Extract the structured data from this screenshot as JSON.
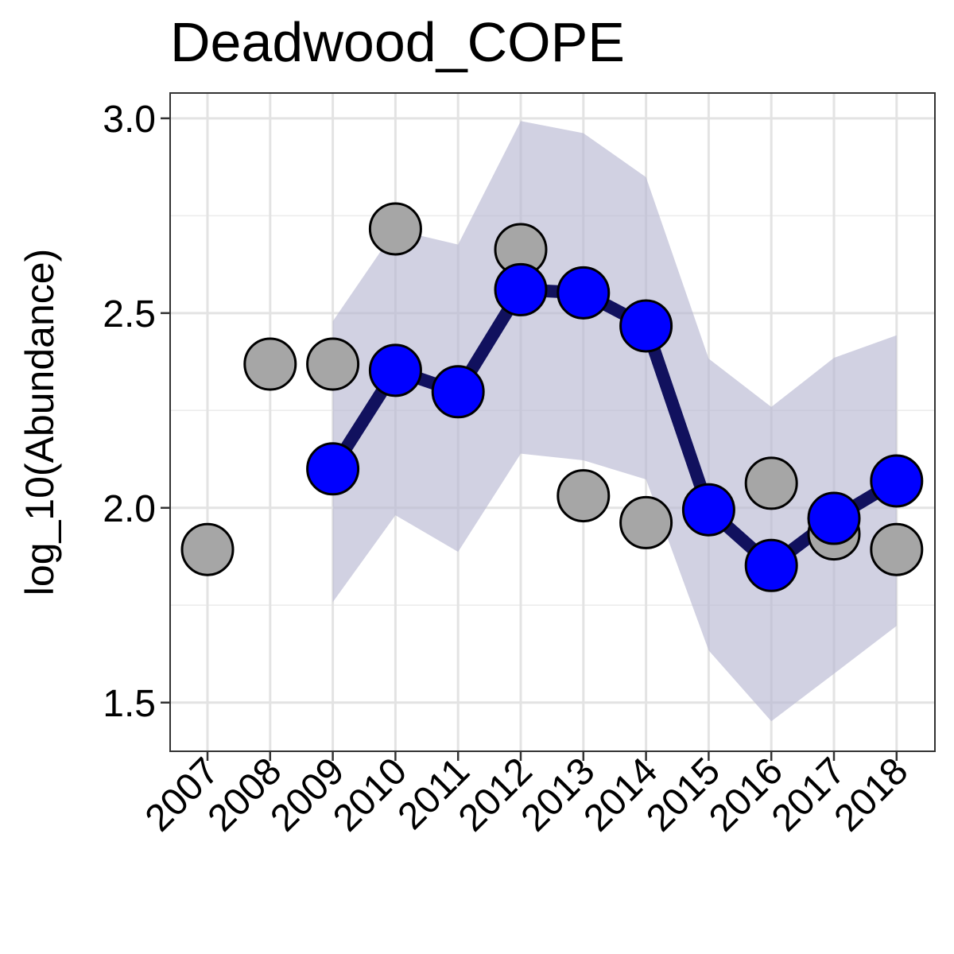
{
  "chart_data": {
    "type": "line",
    "title": "Deadwood_COPE",
    "ylabel": "log_10(Abundance)",
    "xlabel": "",
    "ylim": [
      1.375,
      3.065
    ],
    "yticks": [
      1.5,
      2.0,
      2.5,
      3.0
    ],
    "ytick_labels": [
      "1.5",
      "2.0",
      "2.5",
      "3.0"
    ],
    "categories": [
      "2007",
      "2008",
      "2009",
      "2010",
      "2011",
      "2012",
      "2013",
      "2014",
      "2015",
      "2016",
      "2017",
      "2018"
    ],
    "grid": true,
    "legend": "none",
    "series": [
      {
        "kind": "observed-points",
        "color": "#a6a6a6",
        "x": [
          "2007",
          "2008",
          "2009",
          "2010",
          "2012",
          "2013",
          "2014",
          "2016",
          "2017",
          "2018"
        ],
        "values": [
          1.893,
          2.369,
          2.369,
          2.716,
          2.663,
          2.031,
          1.962,
          2.063,
          1.933,
          1.893
        ]
      },
      {
        "kind": "credible-band",
        "color": "#b9b9d3",
        "x": [
          "2009",
          "2010",
          "2011",
          "2012",
          "2013",
          "2014",
          "2015",
          "2016",
          "2017",
          "2018"
        ],
        "lower": [
          1.758,
          1.981,
          1.887,
          2.139,
          2.122,
          2.073,
          1.634,
          1.452,
          1.574,
          1.697
        ],
        "upper": [
          2.479,
          2.714,
          2.676,
          2.993,
          2.962,
          2.849,
          2.383,
          2.259,
          2.385,
          2.443
        ]
      },
      {
        "kind": "estimate-line",
        "color": "#0000ff",
        "line_color": "#11115e",
        "x": [
          "2009",
          "2010",
          "2011",
          "2012",
          "2013",
          "2014",
          "2015",
          "2016",
          "2017",
          "2018"
        ],
        "values": [
          2.1,
          2.353,
          2.298,
          2.56,
          2.552,
          2.467,
          1.995,
          1.852,
          1.973,
          2.069
        ]
      }
    ]
  }
}
